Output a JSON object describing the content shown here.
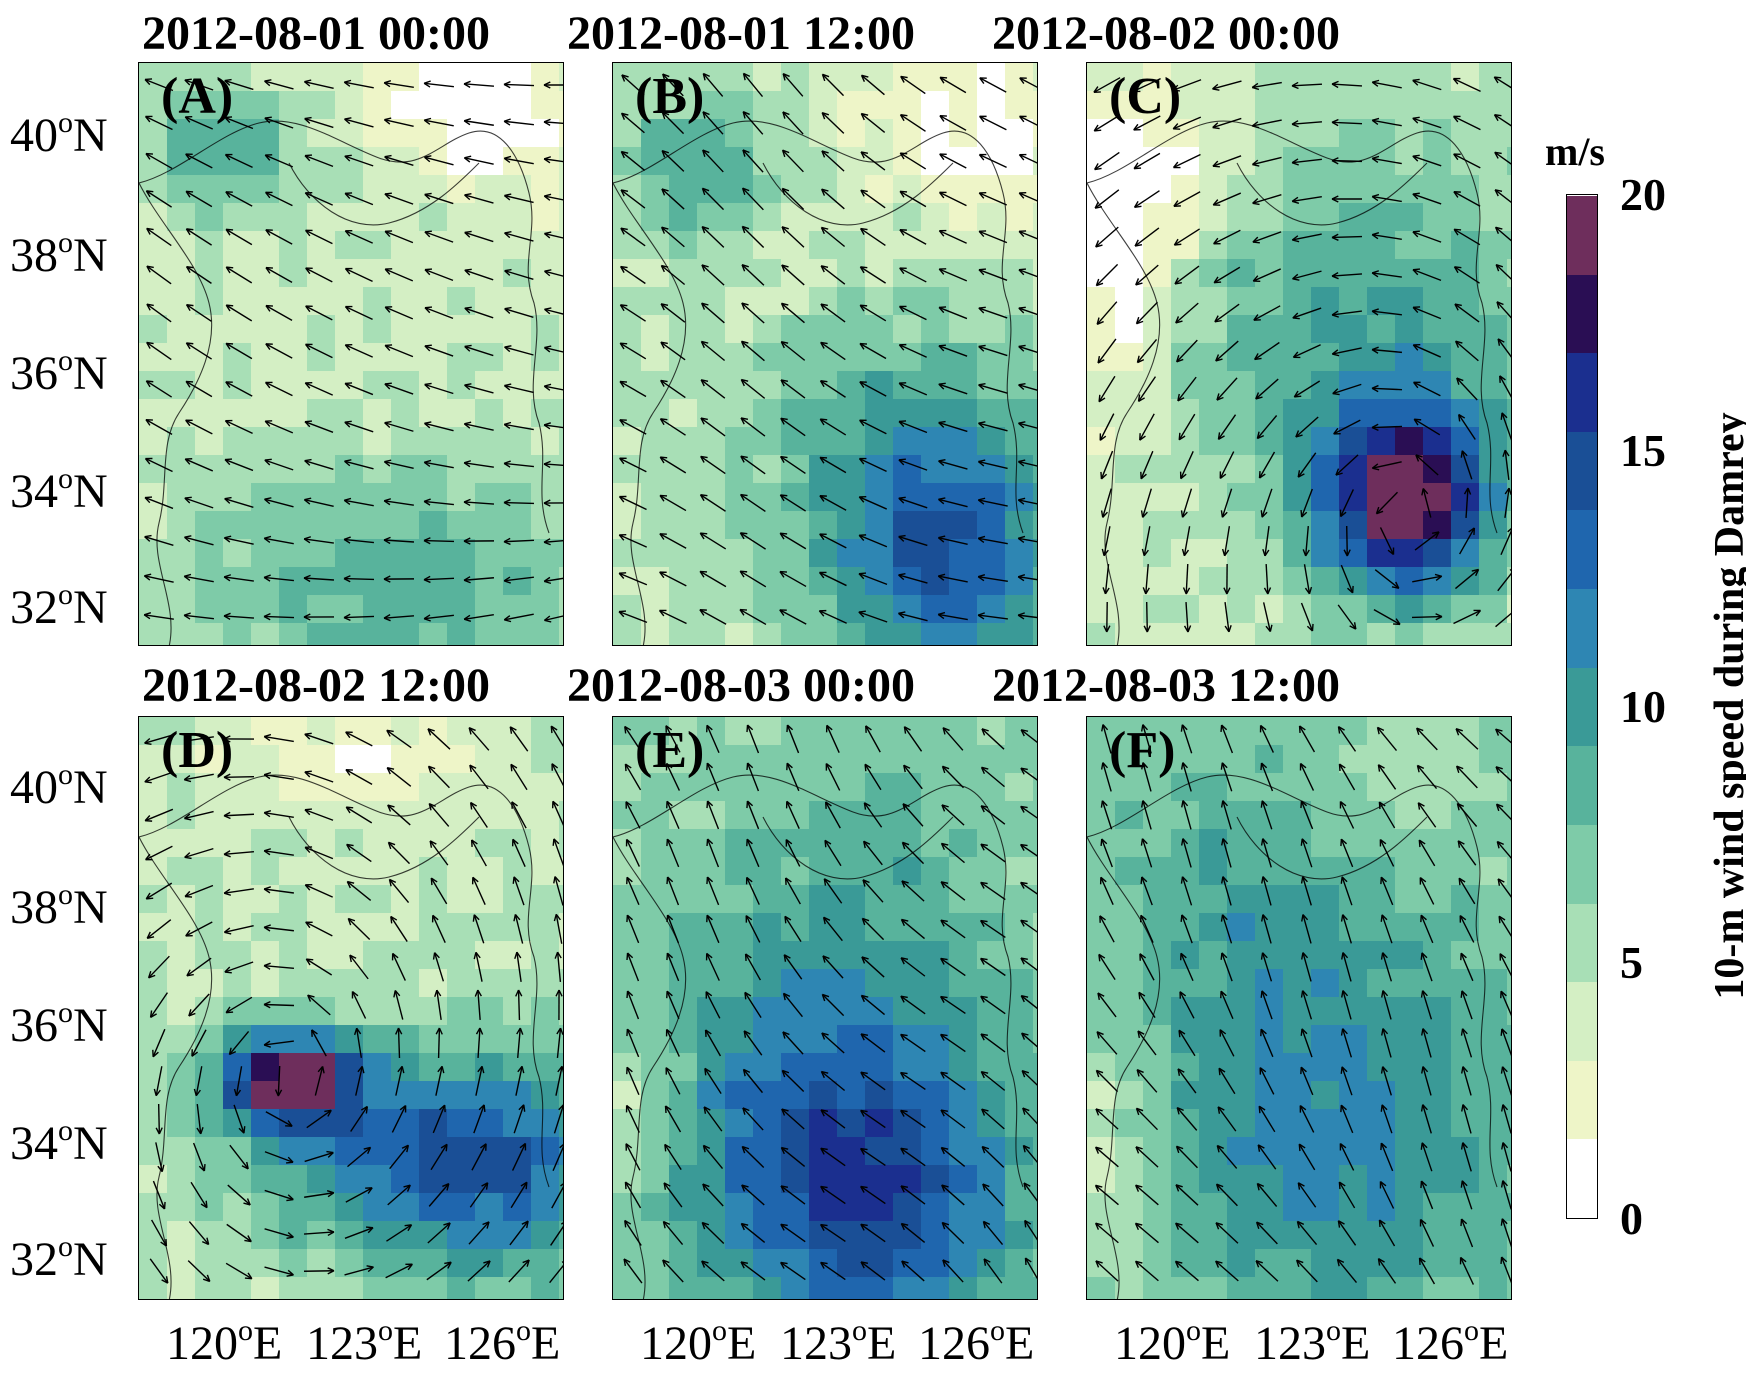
{
  "panels": [
    {
      "title": "2012-08-01 00:00",
      "letter": "(A)",
      "pattern": "a"
    },
    {
      "title": "2012-08-01 12:00",
      "letter": "(B)",
      "pattern": "b"
    },
    {
      "title": "2012-08-02 00:00",
      "letter": "(C)",
      "pattern": "c"
    },
    {
      "title": "2012-08-02 12:00",
      "letter": "(D)",
      "pattern": "d"
    },
    {
      "title": "2012-08-03 00:00",
      "letter": "(E)",
      "pattern": "e"
    },
    {
      "title": "2012-08-03 12:00",
      "letter": "(F)",
      "pattern": "f"
    }
  ],
  "lat_labels": [
    "40",
    "38",
    "36",
    "34",
    "32"
  ],
  "lat_suffix": "N",
  "lon_labels": [
    "120",
    "123",
    "126"
  ],
  "lon_suffix": "E",
  "degree_mark": "o",
  "colorbar": {
    "unit": "m/s",
    "label": "10-m wind speed during Damrey",
    "ticks": [
      "0",
      "5",
      "10",
      "15",
      "20"
    ],
    "range": [
      0,
      20
    ],
    "colors": [
      "#ffffff",
      "#eef5c8",
      "#d4efc4",
      "#a8dfb6",
      "#7ecba8",
      "#58b39c",
      "#3a9a97",
      "#2e86b3",
      "#1f66ae",
      "#1a4f96",
      "#1b2f8f",
      "#2a0e54",
      "#6e2e5c"
    ]
  }
}
